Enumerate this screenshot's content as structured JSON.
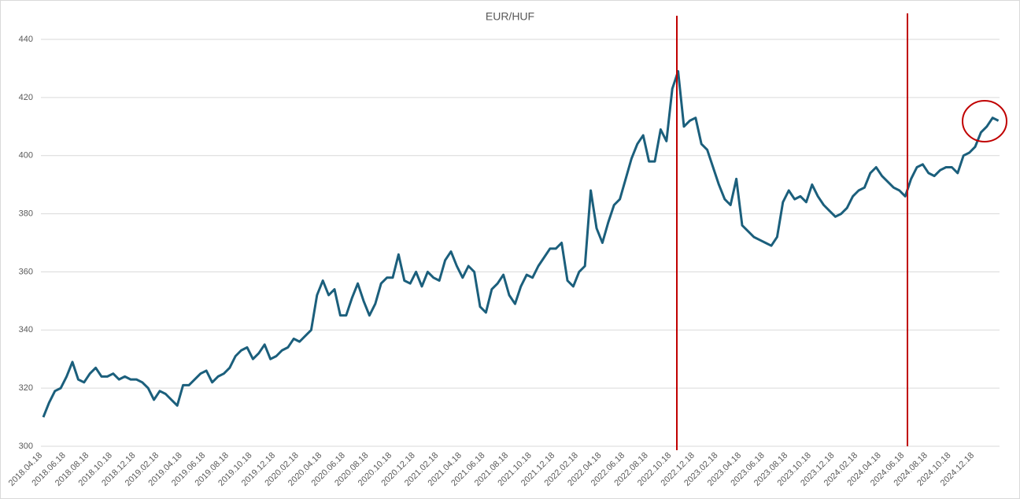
{
  "chart_data": {
    "type": "line",
    "title": "EUR/HUF",
    "categories": [
      "2018.04.18",
      null,
      null,
      null,
      "2018.06.18",
      null,
      null,
      null,
      "2018.08.18",
      null,
      null,
      null,
      "2018.10.18",
      null,
      null,
      null,
      "2018.12.18",
      null,
      null,
      null,
      "2019.02.18",
      null,
      null,
      null,
      "2019.04.18",
      null,
      null,
      null,
      "2019.06.18",
      null,
      null,
      null,
      "2019.08.18",
      null,
      null,
      null,
      "2019.10.18",
      null,
      null,
      null,
      "2019.12.18",
      null,
      null,
      null,
      "2020.02.18",
      null,
      null,
      null,
      "2020.04.18",
      null,
      null,
      null,
      "2020.06.18",
      null,
      null,
      null,
      "2020.08.18",
      null,
      null,
      null,
      "2020.10.18",
      null,
      null,
      null,
      "2020.12.18",
      null,
      null,
      null,
      "2021.02.18",
      null,
      null,
      null,
      "2021.04.18",
      null,
      null,
      null,
      "2021.06.18",
      null,
      null,
      null,
      "2021.08.18",
      null,
      null,
      null,
      "2021.10.18",
      null,
      null,
      null,
      "2021.12.18",
      null,
      null,
      null,
      "2022.02.18",
      null,
      null,
      null,
      "2022.04.18",
      null,
      null,
      null,
      "2022.06.18",
      null,
      null,
      null,
      "2022.08.18",
      null,
      null,
      null,
      "2022.10.18",
      null,
      null,
      null,
      "2022.12.18",
      null,
      null,
      null,
      "2023.02.18",
      null,
      null,
      null,
      "2023.04.18",
      null,
      null,
      null,
      "2023.06.18",
      null,
      null,
      null,
      "2023.08.18",
      null,
      null,
      null,
      "2023.10.18",
      null,
      null,
      null,
      "2023.12.18",
      null,
      null,
      null,
      "2024.02.18",
      null,
      null,
      null,
      "2024.04.18",
      null,
      null,
      null,
      "2024.06.18",
      null,
      null,
      null,
      "2024.08.18",
      null,
      null,
      null,
      "2024.10.18",
      null,
      null,
      null,
      "2024.12.18",
      null,
      null,
      null,
      null
    ],
    "values": [
      310,
      315,
      319,
      320,
      324,
      329,
      323,
      322,
      325,
      327,
      324,
      324,
      325,
      323,
      324,
      323,
      323,
      322,
      320,
      316,
      319,
      318,
      316,
      314,
      321,
      321,
      323,
      325,
      326,
      322,
      324,
      325,
      327,
      331,
      333,
      334,
      330,
      332,
      335,
      330,
      331,
      333,
      334,
      337,
      336,
      338,
      340,
      352,
      357,
      352,
      354,
      345,
      345,
      351,
      356,
      350,
      345,
      349,
      356,
      358,
      358,
      366,
      357,
      356,
      360,
      355,
      360,
      358,
      357,
      364,
      367,
      362,
      358,
      362,
      360,
      348,
      346,
      354,
      356,
      359,
      352,
      349,
      355,
      359,
      358,
      362,
      365,
      368,
      368,
      370,
      357,
      355,
      360,
      362,
      388,
      375,
      370,
      377,
      383,
      385,
      392,
      399,
      404,
      407,
      398,
      398,
      409,
      405,
      423,
      429,
      410,
      412,
      413,
      404,
      402,
      396,
      390,
      385,
      383,
      392,
      376,
      374,
      372,
      371,
      370,
      369,
      372,
      384,
      388,
      385,
      386,
      384,
      390,
      386,
      383,
      381,
      379,
      380,
      382,
      386,
      388,
      389,
      394,
      396,
      393,
      391,
      389,
      388,
      386,
      392,
      396,
      397,
      394,
      393,
      395,
      396,
      396,
      394,
      400,
      401,
      403,
      408,
      410,
      413,
      412
    ],
    "color": "#1b5f7c",
    "ylim": [
      300,
      440
    ],
    "yticks": [
      300,
      320,
      340,
      360,
      380,
      400,
      420,
      440
    ],
    "grid": true
  }
}
